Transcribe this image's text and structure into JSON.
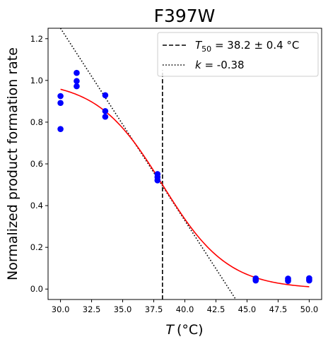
{
  "chart_data": {
    "type": "scatter",
    "title": "F397W",
    "xlabel": {
      "symbol": "T",
      "unit": "(°C)"
    },
    "ylabel": "Normalized product formation rate",
    "xlim": [
      29.0,
      51.0
    ],
    "ylim": [
      -0.05,
      1.25
    ],
    "xticks": [
      30.0,
      32.5,
      35.0,
      37.5,
      40.0,
      42.5,
      45.0,
      47.5,
      50.0
    ],
    "xtick_labels": [
      "30.0",
      "32.5",
      "35.0",
      "37.5",
      "40.0",
      "42.5",
      "45.0",
      "47.5",
      "50.0"
    ],
    "yticks": [
      0.0,
      0.2,
      0.4,
      0.6,
      0.8,
      1.0,
      1.2
    ],
    "ytick_labels": [
      "0.0",
      "0.2",
      "0.4",
      "0.6",
      "0.8",
      "1.0",
      "1.2"
    ],
    "grid": false,
    "legend_position": "top-right",
    "colors": {
      "points": "#0000ff",
      "fit": "#ff0000",
      "lines": "#000000"
    },
    "points": [
      {
        "x": 30.0,
        "y": 0.925
      },
      {
        "x": 30.0,
        "y": 0.892
      },
      {
        "x": 30.0,
        "y": 0.767
      },
      {
        "x": 31.3,
        "y": 1.036
      },
      {
        "x": 31.3,
        "y": 0.997
      },
      {
        "x": 31.3,
        "y": 0.972
      },
      {
        "x": 33.6,
        "y": 0.929
      },
      {
        "x": 33.6,
        "y": 0.853
      },
      {
        "x": 33.6,
        "y": 0.826
      },
      {
        "x": 37.8,
        "y": 0.551
      },
      {
        "x": 37.8,
        "y": 0.536
      },
      {
        "x": 37.8,
        "y": 0.521
      },
      {
        "x": 45.7,
        "y": 0.051
      },
      {
        "x": 45.7,
        "y": 0.045
      },
      {
        "x": 45.7,
        "y": 0.041
      },
      {
        "x": 48.3,
        "y": 0.05
      },
      {
        "x": 48.3,
        "y": 0.043
      },
      {
        "x": 48.3,
        "y": 0.039
      },
      {
        "x": 50.0,
        "y": 0.052
      },
      {
        "x": 50.0,
        "y": 0.046
      },
      {
        "x": 50.0,
        "y": 0.041
      }
    ],
    "fit_curve": {
      "type": "sigmoid",
      "upper": 1.0,
      "lower": 0.0,
      "t50": 38.2,
      "slope": 0.38,
      "x_range": [
        30.0,
        50.0
      ]
    },
    "t50_line": {
      "x": 38.2,
      "y_range": [
        -0.05,
        1.05
      ]
    },
    "tangent_line": {
      "x": [
        30.0,
        44.1
      ],
      "y": [
        1.25,
        -0.05
      ]
    },
    "legend": [
      {
        "style": "dashed",
        "prefix": "T",
        "subscript": "50",
        "suffix": " = 38.2 ± 0.4 °C"
      },
      {
        "style": "dotted",
        "prefix": "k",
        "subscript": "",
        "suffix": " = -0.38"
      }
    ]
  }
}
